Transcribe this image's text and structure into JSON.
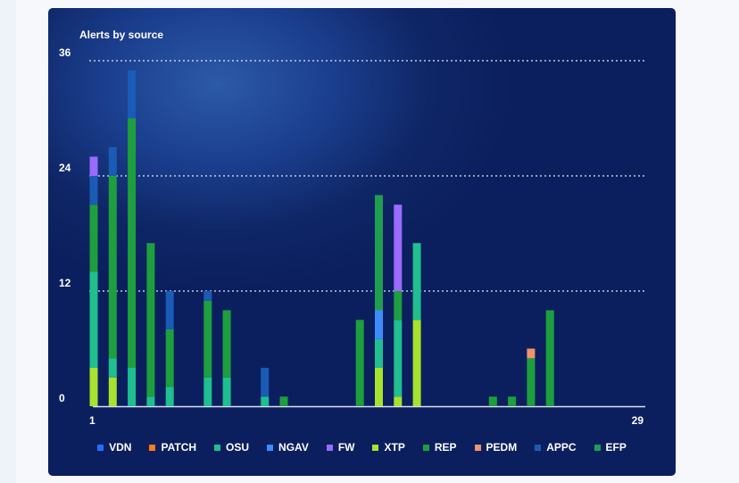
{
  "chart_data": {
    "type": "bar",
    "stacked": true,
    "title": "Alerts by source",
    "xlabel": "",
    "ylabel": "",
    "ylim": [
      0,
      36
    ],
    "y_ticks": [
      0,
      12,
      24,
      36
    ],
    "x_range": [
      1,
      29
    ],
    "x_tick_labels": [
      "1",
      "29"
    ],
    "grid": "dotted horizontal",
    "legend_position": "bottom",
    "x": [
      1,
      2,
      3,
      4,
      5,
      7,
      8,
      10,
      11,
      15,
      16,
      17,
      18,
      22,
      23,
      24,
      25
    ],
    "series": [
      {
        "name": "VDN",
        "color": "#1f6fff",
        "values": [
          0,
          0,
          0,
          0,
          0,
          0,
          0,
          0,
          0,
          0,
          0,
          0,
          0,
          0,
          0,
          0,
          0
        ]
      },
      {
        "name": "PATCH",
        "color": "#ff7a1a",
        "values": [
          0,
          0,
          0,
          0,
          0,
          0,
          0,
          0,
          0,
          0,
          0,
          0,
          0,
          0,
          0,
          0,
          0
        ]
      },
      {
        "name": "XTP",
        "color": "#a6e22e",
        "values": [
          4,
          3,
          0,
          0,
          0,
          0,
          0,
          0,
          0,
          0,
          4,
          1,
          9,
          0,
          0,
          0,
          0
        ]
      },
      {
        "name": "OSU",
        "color": "#1fbf8f",
        "values": [
          10,
          2,
          4,
          1,
          2,
          3,
          3,
          1,
          0,
          0,
          3,
          8,
          8,
          0,
          0,
          0,
          0
        ]
      },
      {
        "name": "REP",
        "color": "#1e9e3e",
        "values": [
          7,
          19,
          26,
          16,
          6,
          8,
          7,
          0,
          1,
          9,
          0,
          3,
          0,
          1,
          1,
          5,
          10
        ]
      },
      {
        "name": "NGAV",
        "color": "#3d8bff",
        "values": [
          0,
          0,
          0,
          0,
          0,
          0,
          0,
          0,
          0,
          0,
          3,
          0,
          0,
          0,
          0,
          0,
          0
        ]
      },
      {
        "name": "EFP",
        "color": "#1f9e4f",
        "values": [
          0,
          0,
          0,
          0,
          0,
          0,
          0,
          0,
          0,
          0,
          12,
          0,
          0,
          0,
          0,
          0,
          0
        ]
      },
      {
        "name": "APPC",
        "color": "#1a5bb5",
        "values": [
          3,
          3,
          5,
          0,
          4,
          1,
          0,
          3,
          0,
          0,
          0,
          0,
          0,
          0,
          0,
          0,
          0
        ]
      },
      {
        "name": "FW",
        "color": "#9a6bff",
        "values": [
          2,
          0,
          0,
          0,
          0,
          0,
          0,
          0,
          0,
          0,
          0,
          9,
          0,
          0,
          0,
          0,
          0
        ]
      },
      {
        "name": "PEDM",
        "color": "#f0946b",
        "values": [
          0,
          0,
          0,
          0,
          0,
          0,
          0,
          0,
          0,
          0,
          0,
          0,
          0,
          0,
          0,
          1,
          0
        ]
      }
    ],
    "legend": [
      "VDN",
      "PATCH",
      "OSU",
      "NGAV",
      "FW",
      "XTP",
      "REP",
      "PEDM",
      "APPC",
      "EFP"
    ]
  }
}
